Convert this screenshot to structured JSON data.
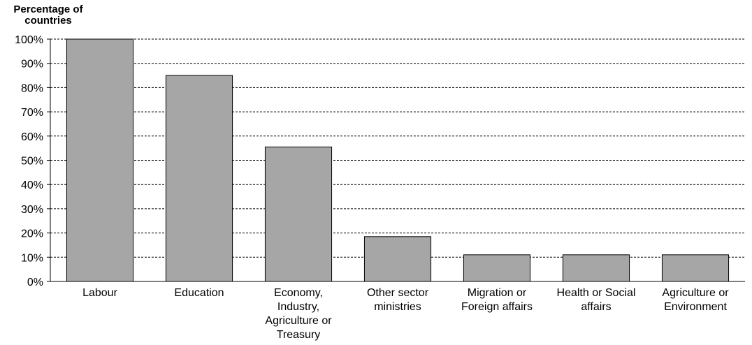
{
  "chart_data": {
    "type": "bar",
    "title": "",
    "ylabel": "Percentage of countries",
    "xlabel": "",
    "ylim": [
      0,
      100
    ],
    "ytick_step": 10,
    "ytick_suffix": "%",
    "grid": true,
    "bar_color": "#a6a6a6",
    "categories": [
      "Labour",
      "Education",
      "Economy, Industry, Agriculture or Treasury",
      "Other sector ministries",
      "Migration or Foreign affairs",
      "Health or Social affairs",
      "Agriculture or Environment"
    ],
    "category_lines": [
      [
        "Labour"
      ],
      [
        "Education"
      ],
      [
        "Economy,",
        "Industry,",
        "Agriculture or",
        "Treasury"
      ],
      [
        "Other sector",
        "ministries"
      ],
      [
        "Migration or",
        "Foreign affairs"
      ],
      [
        "Health or Social",
        "affairs"
      ],
      [
        "Agriculture or",
        "Environment"
      ]
    ],
    "values": [
      100,
      85,
      55.5,
      18.5,
      11,
      11,
      11
    ]
  }
}
